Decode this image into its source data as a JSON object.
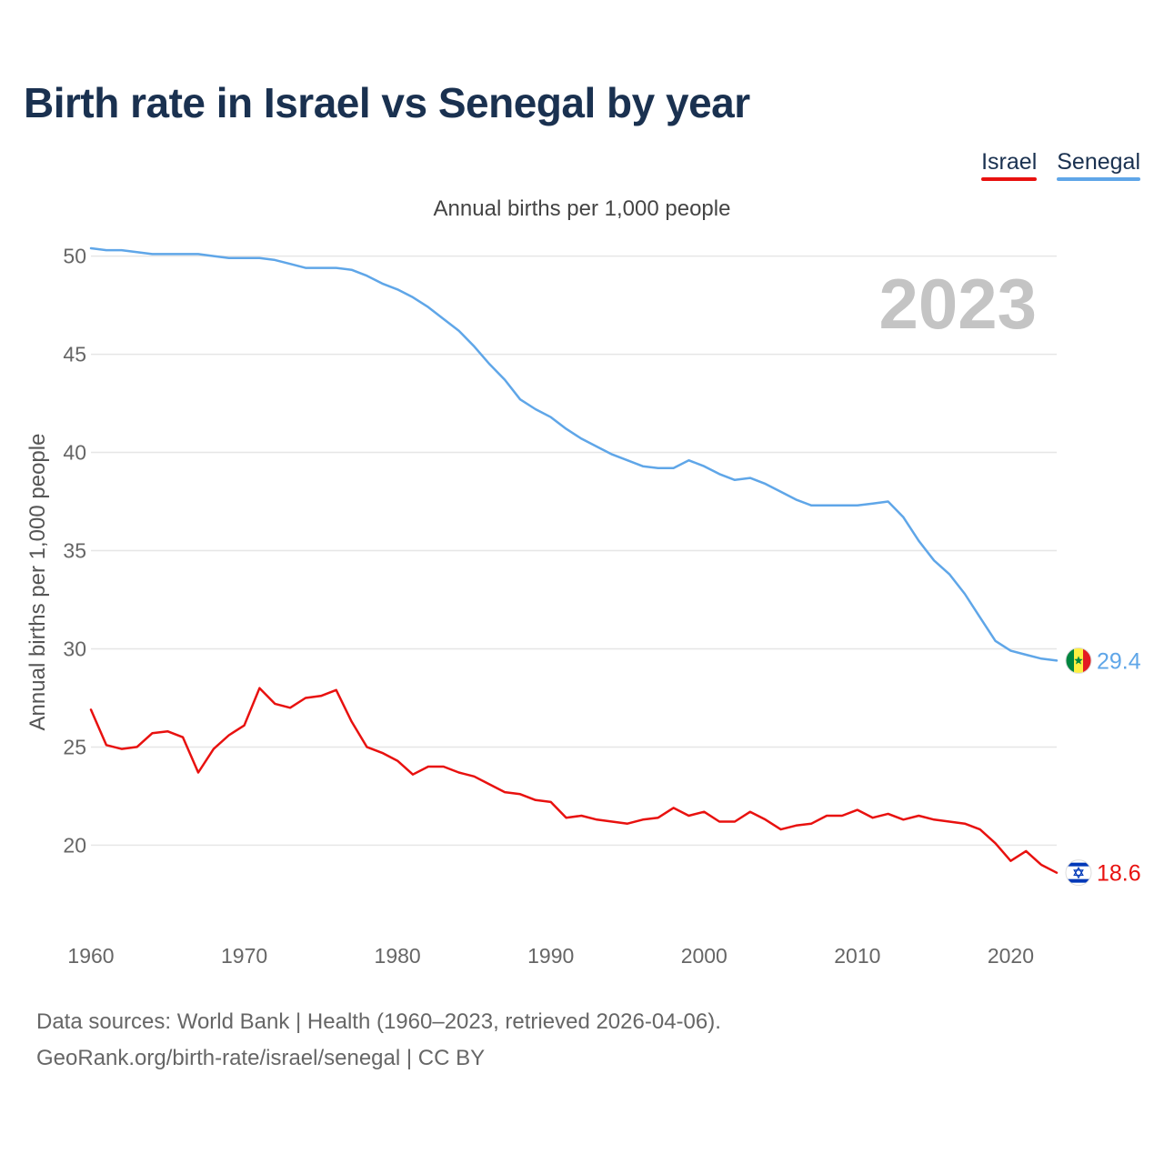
{
  "title": "Birth rate in Israel vs Senegal by year",
  "subtitle": "Annual births per 1,000 people",
  "legend": [
    {
      "label": "Israel",
      "color": "#e8110f"
    },
    {
      "label": "Senegal",
      "color": "#5fa6e8"
    }
  ],
  "year_watermark": "2023",
  "source": {
    "line1": "Data sources: World Bank | Health (1960–2023, retrieved 2026-04-06).",
    "line2": "GeoRank.org/birth-rate/israel/senegal | CC BY"
  },
  "chart_data": {
    "type": "line",
    "title": "Birth rate in Israel vs Senegal by year",
    "xlabel": "",
    "ylabel": "Annual births per 1,000 people",
    "xlim": [
      1960,
      2023
    ],
    "ylim": [
      16.5,
      51
    ],
    "xticks": [
      1960,
      1970,
      1980,
      1990,
      2000,
      2010,
      2020
    ],
    "yticks": [
      20,
      25,
      30,
      35,
      40,
      45,
      50
    ],
    "grid": true,
    "legend_position": "top-right",
    "x": [
      1960,
      1961,
      1962,
      1963,
      1964,
      1965,
      1966,
      1967,
      1968,
      1969,
      1970,
      1971,
      1972,
      1973,
      1974,
      1975,
      1976,
      1977,
      1978,
      1979,
      1980,
      1981,
      1982,
      1983,
      1984,
      1985,
      1986,
      1987,
      1988,
      1989,
      1990,
      1991,
      1992,
      1993,
      1994,
      1995,
      1996,
      1997,
      1998,
      1999,
      2000,
      2001,
      2002,
      2003,
      2004,
      2005,
      2006,
      2007,
      2008,
      2009,
      2010,
      2011,
      2012,
      2013,
      2014,
      2015,
      2016,
      2017,
      2018,
      2019,
      2020,
      2021,
      2022,
      2023
    ],
    "series": [
      {
        "name": "Israel",
        "color": "#e8110f",
        "end_label": "18.6",
        "flag": "israel",
        "values": [
          26.9,
          25.1,
          24.9,
          25.0,
          25.7,
          25.8,
          25.5,
          23.7,
          24.9,
          25.6,
          26.1,
          28.0,
          27.2,
          27.0,
          27.5,
          27.6,
          27.9,
          26.3,
          25.0,
          24.7,
          24.3,
          23.6,
          24.0,
          24.0,
          23.7,
          23.5,
          23.1,
          22.7,
          22.6,
          22.3,
          22.2,
          21.4,
          21.5,
          21.3,
          21.2,
          21.1,
          21.3,
          21.4,
          21.9,
          21.5,
          21.7,
          21.2,
          21.2,
          21.7,
          21.3,
          20.8,
          21.0,
          21.1,
          21.5,
          21.5,
          21.8,
          21.4,
          21.6,
          21.3,
          21.5,
          21.3,
          21.2,
          21.1,
          20.8,
          20.1,
          19.2,
          19.7,
          19.0,
          18.6
        ]
      },
      {
        "name": "Senegal",
        "color": "#5fa6e8",
        "end_label": "29.4",
        "flag": "senegal",
        "values": [
          50.4,
          50.3,
          50.3,
          50.2,
          50.1,
          50.1,
          50.1,
          50.1,
          50.0,
          49.9,
          49.9,
          49.9,
          49.8,
          49.6,
          49.4,
          49.4,
          49.4,
          49.3,
          49.0,
          48.6,
          48.3,
          47.9,
          47.4,
          46.8,
          46.2,
          45.4,
          44.5,
          43.7,
          42.7,
          42.2,
          41.8,
          41.2,
          40.7,
          40.3,
          39.9,
          39.6,
          39.3,
          39.2,
          39.2,
          39.6,
          39.3,
          38.9,
          38.6,
          38.7,
          38.4,
          38.0,
          37.6,
          37.3,
          37.3,
          37.3,
          37.3,
          37.4,
          37.5,
          36.7,
          35.5,
          34.5,
          33.8,
          32.8,
          31.6,
          30.4,
          29.9,
          29.7,
          29.5,
          29.4
        ]
      }
    ]
  }
}
